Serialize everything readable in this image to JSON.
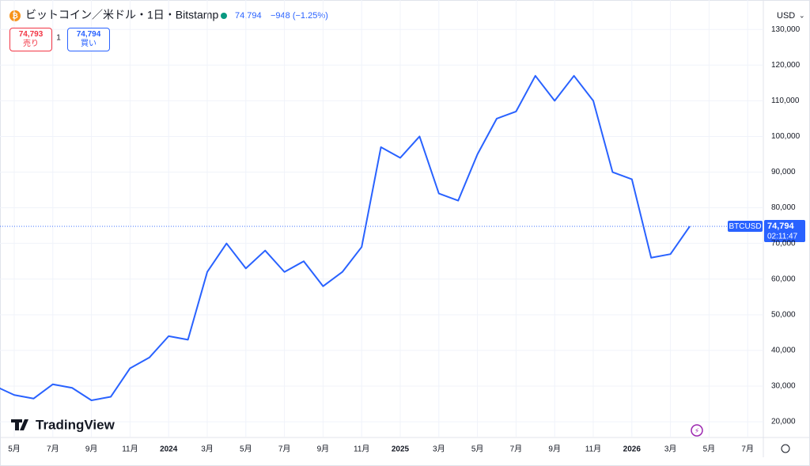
{
  "chart_data": {
    "type": "line",
    "title": "ビットコイン／米ドル・1日・Bitstamp",
    "x": [
      "2023-04",
      "2023-05",
      "2023-06",
      "2023-07",
      "2023-08",
      "2023-09",
      "2023-10",
      "2023-11",
      "2023-12",
      "2024-01",
      "2024-02",
      "2024-03",
      "2024-04",
      "2024-05",
      "2024-06",
      "2024-07",
      "2024-08",
      "2024-09",
      "2024-10",
      "2024-11",
      "2024-12",
      "2025-01",
      "2025-02",
      "2025-03",
      "2025-04",
      "2025-05",
      "2025-06",
      "2025-07",
      "2025-08",
      "2025-09",
      "2025-10",
      "2025-11",
      "2025-12",
      "2026-01",
      "2026-02",
      "2026-03",
      "2026-04"
    ],
    "series": [
      {
        "name": "BTCUSD",
        "color": "#2962ff",
        "values": [
          30000,
          27500,
          26500,
          30500,
          29500,
          26000,
          27000,
          35000,
          38000,
          44000,
          43000,
          62000,
          70000,
          63000,
          68000,
          62000,
          65000,
          58000,
          62000,
          69000,
          97000,
          94000,
          100000,
          84000,
          82000,
          95000,
          105000,
          107000,
          117000,
          110000,
          117000,
          110000,
          90000,
          88000,
          66000,
          67000,
          74794
        ]
      }
    ],
    "xlim": [
      "2023-04",
      "2026-08"
    ],
    "xticks": [
      {
        "value": "2023-05",
        "label": "5月"
      },
      {
        "value": "2023-07",
        "label": "7月"
      },
      {
        "value": "2023-09",
        "label": "9月"
      },
      {
        "value": "2023-11",
        "label": "11月"
      },
      {
        "value": "2024-01",
        "label": "2024"
      },
      {
        "value": "2024-03",
        "label": "3月"
      },
      {
        "value": "2024-05",
        "label": "5月"
      },
      {
        "value": "2024-07",
        "label": "7月"
      },
      {
        "value": "2024-09",
        "label": "9月"
      },
      {
        "value": "2024-11",
        "label": "11月"
      },
      {
        "value": "2025-01",
        "label": "2025"
      },
      {
        "value": "2025-03",
        "label": "3月"
      },
      {
        "value": "2025-05",
        "label": "5月"
      },
      {
        "value": "2025-07",
        "label": "7月"
      },
      {
        "value": "2025-09",
        "label": "9月"
      },
      {
        "value": "2025-11",
        "label": "11月"
      },
      {
        "value": "2026-01",
        "label": "2026"
      },
      {
        "value": "2026-03",
        "label": "3月"
      },
      {
        "value": "2026-05",
        "label": "5月"
      },
      {
        "value": "2026-07",
        "label": "7月"
      }
    ],
    "ylim": [
      15800,
      131600
    ],
    "yticks": [
      {
        "value": 20000,
        "label": "20,000"
      },
      {
        "value": 30000,
        "label": "30,000"
      },
      {
        "value": 40000,
        "label": "40,000"
      },
      {
        "value": 50000,
        "label": "50,000"
      },
      {
        "value": 60000,
        "label": "60,000"
      },
      {
        "value": 70000,
        "label": "70,000"
      },
      {
        "value": 80000,
        "label": "80,000"
      },
      {
        "value": 90000,
        "label": "90,000"
      },
      {
        "value": 100000,
        "label": "100,000"
      },
      {
        "value": 110000,
        "label": "110,000"
      },
      {
        "value": 120000,
        "label": "120,000"
      },
      {
        "value": 130000,
        "label": "130,000"
      }
    ],
    "grid": true
  },
  "header": {
    "price": "74,794",
    "change": "−948 (−1.25%)",
    "sell_price": "74,793",
    "sell_label": "売り",
    "spread": "1",
    "buy_price": "74,794",
    "buy_label": "買い",
    "currency": "USD",
    "symbol": "BTCUSD",
    "last_price": "74,794",
    "countdown": "02:11:47",
    "logo": "TradingView"
  }
}
